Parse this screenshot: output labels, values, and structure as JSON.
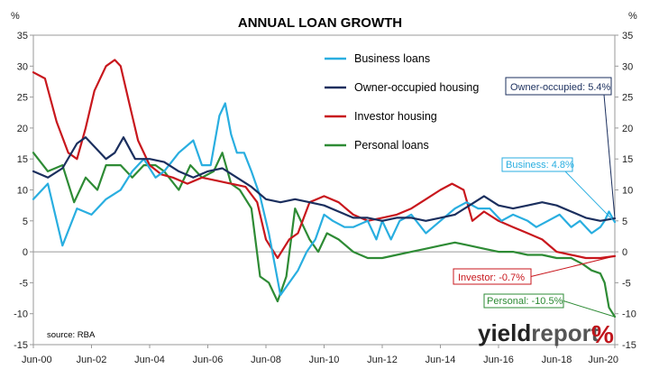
{
  "chart_data": {
    "type": "line",
    "title": "ANNUAL LOAN GROWTH",
    "ylabel_left": "%",
    "ylabel_right": "%",
    "ylim": [
      -15,
      35
    ],
    "yticks": [
      35,
      30,
      25,
      20,
      15,
      10,
      5,
      0,
      -5,
      -10,
      -15
    ],
    "xticks": [
      "Jun-00",
      "Jun-02",
      "Jun-04",
      "Jun-06",
      "Jun-08",
      "Jun-10",
      "Jun-12",
      "Jun-14",
      "Jun-16",
      "Jun-18",
      "Jun-20"
    ],
    "xrange": [
      2000.5,
      2020.5
    ],
    "grid": false,
    "legend_position": "top-center",
    "source": "source: RBA",
    "series": [
      {
        "name": "Business loans",
        "color": "#29aee0",
        "x": [
          2000.5,
          2001.0,
          2001.25,
          2001.5,
          2002.0,
          2002.5,
          2003.0,
          2003.5,
          2003.9,
          2004.3,
          2004.7,
          2005.0,
          2005.5,
          2006.0,
          2006.3,
          2006.6,
          2006.9,
          2007.1,
          2007.3,
          2007.5,
          2007.75,
          2008.0,
          2008.3,
          2008.6,
          2008.8,
          2009.0,
          2009.3,
          2009.6,
          2009.9,
          2010.2,
          2010.5,
          2010.8,
          2011.2,
          2011.5,
          2012.0,
          2012.3,
          2012.5,
          2012.8,
          2013.1,
          2013.5,
          2014.0,
          2014.5,
          2015.0,
          2015.4,
          2015.8,
          2016.2,
          2016.6,
          2017.0,
          2017.5,
          2017.8,
          2018.2,
          2018.6,
          2019.0,
          2019.3,
          2019.7,
          2020.0,
          2020.15,
          2020.3,
          2020.5
        ],
        "values": [
          8.5,
          11,
          6,
          1,
          7,
          6,
          8.5,
          10,
          13,
          15,
          12,
          13,
          16,
          18,
          14,
          14,
          22,
          24,
          19,
          16,
          16,
          13,
          9,
          3,
          -2,
          -7,
          -5,
          -3,
          0,
          2,
          6,
          5,
          4,
          4,
          5,
          2,
          5,
          2,
          5,
          6,
          3,
          5,
          7,
          8,
          7,
          7,
          5,
          6,
          5,
          4,
          5,
          6,
          4,
          5,
          3,
          4,
          5,
          6.5,
          4.8
        ]
      },
      {
        "name": "Owner-occupied housing",
        "color": "#1b2f5e",
        "x": [
          2000.5,
          2001.0,
          2001.5,
          2002.0,
          2002.3,
          2002.6,
          2003.0,
          2003.3,
          2003.6,
          2004.0,
          2004.5,
          2005.0,
          2005.5,
          2006.0,
          2006.5,
          2007.0,
          2007.5,
          2008.0,
          2008.5,
          2009.0,
          2009.5,
          2010.0,
          2010.5,
          2011.0,
          2011.5,
          2012.0,
          2012.5,
          2013.0,
          2013.5,
          2014.0,
          2014.5,
          2015.0,
          2015.5,
          2016.0,
          2016.5,
          2017.0,
          2017.5,
          2018.0,
          2018.5,
          2019.0,
          2019.5,
          2020.0,
          2020.5
        ],
        "values": [
          13,
          12,
          13.5,
          17.5,
          18.5,
          17,
          15,
          16,
          18.5,
          15,
          15,
          14.5,
          13,
          12,
          13,
          13.5,
          12,
          10.5,
          8.5,
          8,
          8.5,
          8,
          7.5,
          6.5,
          5.5,
          5.5,
          5,
          5.5,
          5.5,
          5,
          5.5,
          6,
          7.5,
          9,
          7.5,
          7,
          7.5,
          8,
          7.5,
          6.5,
          5.5,
          5,
          5.4
        ]
      },
      {
        "name": "Investor housing",
        "color": "#c8171d",
        "x": [
          2000.5,
          2000.9,
          2001.3,
          2001.7,
          2002.0,
          2002.3,
          2002.6,
          2003.0,
          2003.3,
          2003.5,
          2003.8,
          2004.1,
          2004.5,
          2004.9,
          2005.3,
          2005.8,
          2006.3,
          2006.8,
          2007.3,
          2007.8,
          2008.2,
          2008.5,
          2008.9,
          2009.3,
          2009.6,
          2010.0,
          2010.5,
          2011.0,
          2011.5,
          2012.0,
          2012.5,
          2013.0,
          2013.5,
          2014.0,
          2014.5,
          2014.9,
          2015.3,
          2015.6,
          2016.0,
          2016.5,
          2017.0,
          2017.5,
          2018.0,
          2018.5,
          2019.0,
          2019.5,
          2020.0,
          2020.5
        ],
        "values": [
          29,
          28,
          21,
          16,
          15,
          20,
          26,
          30,
          31,
          30,
          24,
          18,
          14,
          12.5,
          12,
          11,
          12,
          11.5,
          11,
          10.5,
          8,
          2,
          -1,
          2,
          3,
          8,
          9,
          8,
          6,
          5,
          5.5,
          6,
          7,
          8.5,
          10,
          11,
          10,
          5,
          6.5,
          5,
          4,
          3,
          2,
          0,
          -0.5,
          -1,
          -1,
          -0.7
        ]
      },
      {
        "name": "Personal loans",
        "color": "#2e8b35",
        "x": [
          2000.5,
          2001.0,
          2001.5,
          2001.9,
          2002.3,
          2002.7,
          2003.0,
          2003.5,
          2003.9,
          2004.3,
          2004.7,
          2005.0,
          2005.5,
          2005.9,
          2006.3,
          2006.7,
          2007.0,
          2007.3,
          2007.6,
          2008.0,
          2008.3,
          2008.6,
          2008.9,
          2009.2,
          2009.5,
          2009.8,
          2010.0,
          2010.3,
          2010.6,
          2011.0,
          2011.5,
          2012.0,
          2012.5,
          2013.0,
          2013.5,
          2014.0,
          2014.5,
          2015.0,
          2015.5,
          2016.0,
          2016.5,
          2017.0,
          2017.5,
          2018.0,
          2018.5,
          2019.0,
          2019.4,
          2019.7,
          2020.0,
          2020.15,
          2020.3,
          2020.5
        ],
        "values": [
          16,
          13,
          14,
          8,
          12,
          10,
          14,
          14,
          12,
          14,
          14,
          13,
          10,
          14,
          12,
          13,
          16,
          11,
          10,
          7,
          -4,
          -5,
          -8,
          -4,
          7,
          4,
          2,
          0,
          3,
          2,
          0,
          -1,
          -1,
          -0.5,
          0,
          0.5,
          1,
          1.5,
          1,
          0.5,
          0,
          0,
          -0.5,
          -0.5,
          -1,
          -1,
          -2,
          -3,
          -3.5,
          -5,
          -9,
          -10.5
        ]
      }
    ],
    "callouts": [
      {
        "text": "Owner-occupied: 5.4%",
        "series": 1,
        "color": "#1b2f5e"
      },
      {
        "text": "Business: 4.8%",
        "series": 0,
        "color": "#29aee0"
      },
      {
        "text": "Investor: -0.7%",
        "series": 2,
        "color": "#c8171d"
      },
      {
        "text": "Personal: -10.5%",
        "series": 3,
        "color": "#2e8b35"
      }
    ]
  },
  "brand": {
    "part1": "yield",
    "part2": "report",
    "symbol": "%"
  }
}
